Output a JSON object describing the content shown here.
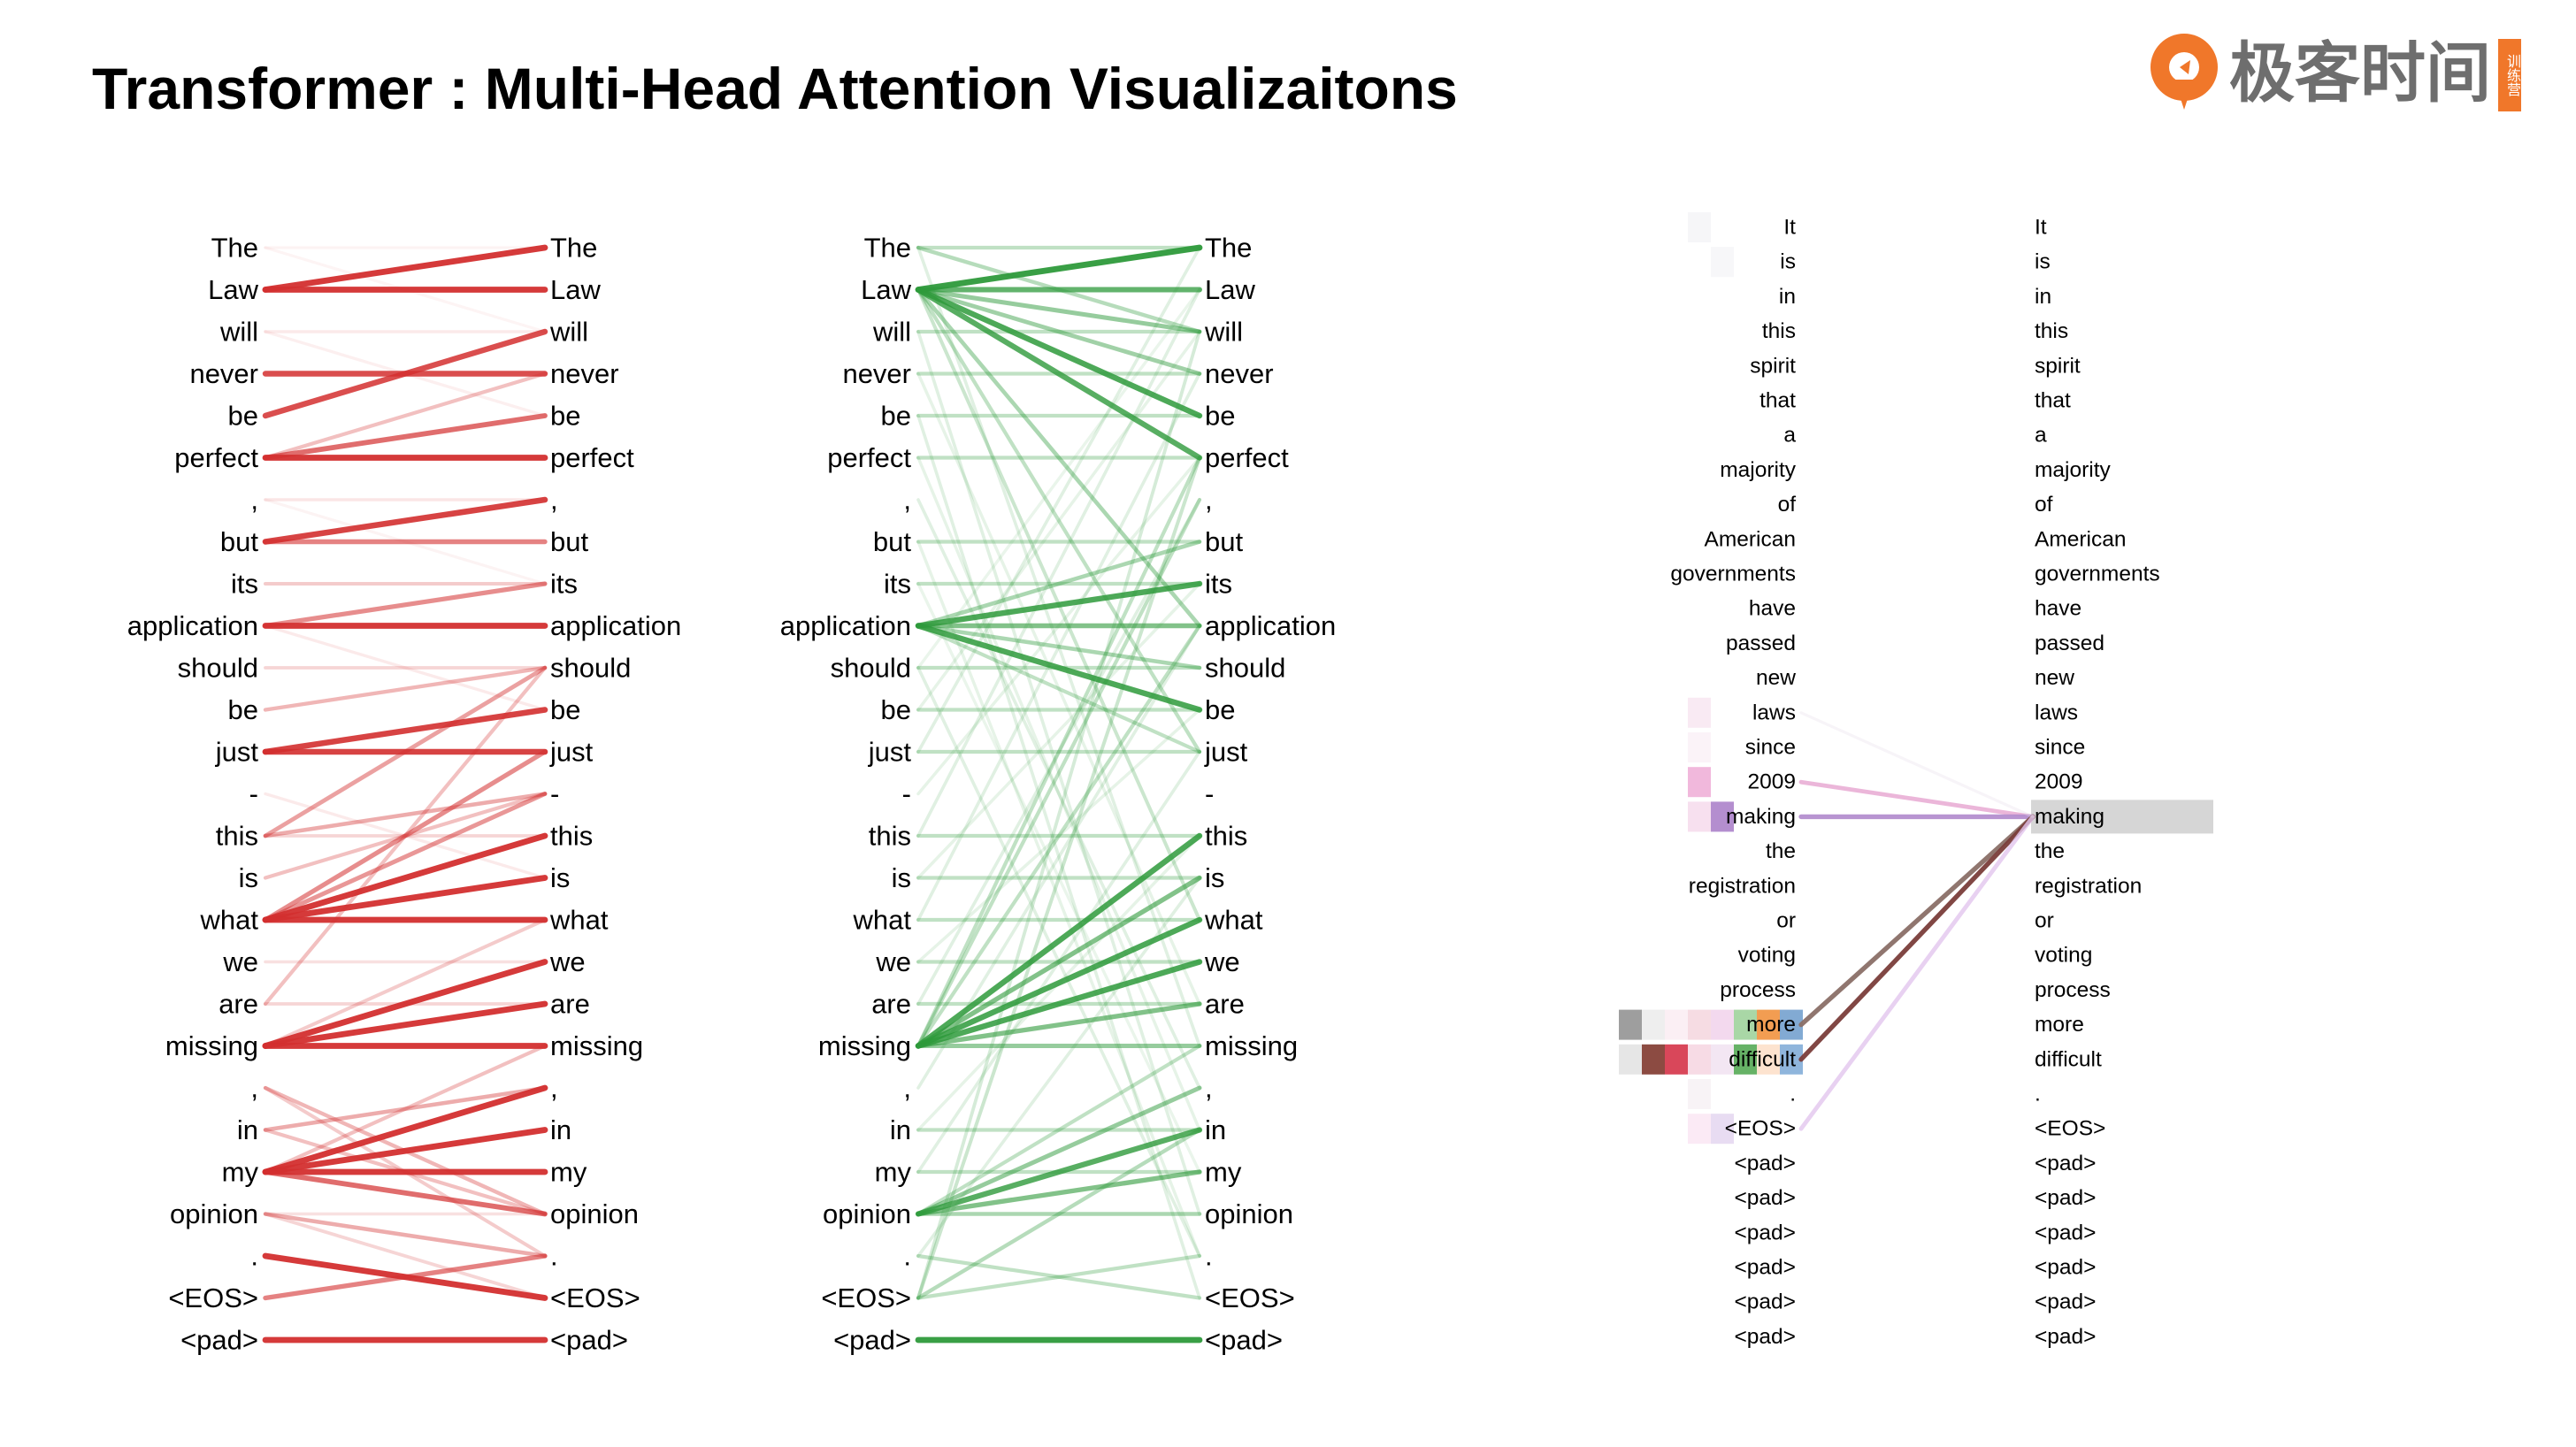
{
  "title": "Transformer : Multi-Head Attention Visualizaitons",
  "brand": {
    "name": "极客时间",
    "tag": "训练营",
    "color": "#f0772a"
  },
  "panels": [
    {
      "name": "red-head",
      "color": "#d32f2f",
      "tokens": [
        "The",
        "Law",
        "will",
        "never",
        "be",
        "perfect",
        ",",
        "but",
        "its",
        "application",
        "should",
        "be",
        "just",
        "-",
        "this",
        "is",
        "what",
        "we",
        "are",
        "missing",
        ",",
        "in",
        "my",
        "opinion",
        ".",
        "<EOS>",
        "<pad>"
      ],
      "links": [
        [
          1,
          0,
          0.95
        ],
        [
          1,
          1,
          0.95
        ],
        [
          3,
          3,
          0.85
        ],
        [
          4,
          2,
          0.85
        ],
        [
          5,
          5,
          0.95
        ],
        [
          5,
          4,
          0.7
        ],
        [
          5,
          3,
          0.3
        ],
        [
          7,
          6,
          0.9
        ],
        [
          7,
          7,
          0.6
        ],
        [
          9,
          9,
          0.95
        ],
        [
          9,
          8,
          0.55
        ],
        [
          12,
          11,
          0.9
        ],
        [
          12,
          12,
          0.9
        ],
        [
          11,
          10,
          0.35
        ],
        [
          10,
          10,
          0.2
        ],
        [
          14,
          10,
          0.45
        ],
        [
          14,
          13,
          0.4
        ],
        [
          16,
          14,
          0.95
        ],
        [
          16,
          15,
          0.95
        ],
        [
          16,
          16,
          0.95
        ],
        [
          16,
          12,
          0.55
        ],
        [
          16,
          13,
          0.5
        ],
        [
          15,
          13,
          0.3
        ],
        [
          18,
          10,
          0.3
        ],
        [
          19,
          17,
          0.95
        ],
        [
          19,
          18,
          0.95
        ],
        [
          19,
          19,
          0.95
        ],
        [
          19,
          16,
          0.25
        ],
        [
          20,
          23,
          0.35
        ],
        [
          20,
          24,
          0.25
        ],
        [
          21,
          20,
          0.4
        ],
        [
          21,
          23,
          0.3
        ],
        [
          22,
          20,
          0.95
        ],
        [
          22,
          21,
          0.95
        ],
        [
          22,
          22,
          0.95
        ],
        [
          22,
          23,
          0.7
        ],
        [
          22,
          19,
          0.3
        ],
        [
          23,
          24,
          0.4
        ],
        [
          23,
          25,
          0.2
        ],
        [
          24,
          25,
          0.95
        ],
        [
          25,
          24,
          0.6
        ],
        [
          26,
          26,
          0.95
        ],
        [
          0,
          2,
          0.05
        ],
        [
          2,
          4,
          0.08
        ],
        [
          6,
          8,
          0.06
        ],
        [
          8,
          8,
          0.25
        ],
        [
          13,
          15,
          0.1
        ],
        [
          17,
          17,
          0.15
        ],
        [
          0,
          0,
          0.06
        ],
        [
          2,
          2,
          0.1
        ],
        [
          6,
          6,
          0.12
        ],
        [
          9,
          11,
          0.1
        ],
        [
          14,
          14,
          0.2
        ],
        [
          18,
          18,
          0.2
        ],
        [
          23,
          23,
          0.15
        ]
      ]
    },
    {
      "name": "green-head",
      "color": "#2e9a3b",
      "tokens": [
        "The",
        "Law",
        "will",
        "never",
        "be",
        "perfect",
        ",",
        "but",
        "its",
        "application",
        "should",
        "be",
        "just",
        "-",
        "this",
        "is",
        "what",
        "we",
        "are",
        "missing",
        ",",
        "in",
        "my",
        "opinion",
        ".",
        "<EOS>",
        "<pad>"
      ],
      "links": [
        [
          1,
          0,
          0.95
        ],
        [
          1,
          1,
          0.75
        ],
        [
          1,
          2,
          0.5
        ],
        [
          1,
          3,
          0.45
        ],
        [
          1,
          4,
          0.85
        ],
        [
          1,
          5,
          0.8
        ],
        [
          1,
          9,
          0.4
        ],
        [
          1,
          12,
          0.3
        ],
        [
          1,
          16,
          0.25
        ],
        [
          9,
          8,
          0.85
        ],
        [
          9,
          11,
          0.85
        ],
        [
          9,
          9,
          0.6
        ],
        [
          9,
          7,
          0.4
        ],
        [
          9,
          10,
          0.4
        ],
        [
          9,
          12,
          0.3
        ],
        [
          19,
          14,
          0.85
        ],
        [
          19,
          15,
          0.6
        ],
        [
          19,
          16,
          0.85
        ],
        [
          19,
          17,
          0.85
        ],
        [
          19,
          18,
          0.6
        ],
        [
          19,
          19,
          0.5
        ],
        [
          19,
          9,
          0.3
        ],
        [
          19,
          6,
          0.3
        ],
        [
          19,
          5,
          0.3
        ],
        [
          23,
          21,
          0.8
        ],
        [
          23,
          22,
          0.6
        ],
        [
          23,
          20,
          0.5
        ],
        [
          23,
          23,
          0.4
        ],
        [
          23,
          19,
          0.3
        ],
        [
          25,
          21,
          0.35
        ],
        [
          25,
          5,
          0.25
        ],
        [
          25,
          2,
          0.2
        ],
        [
          26,
          26,
          0.95
        ],
        [
          0,
          2,
          0.35
        ],
        [
          0,
          0,
          0.3
        ],
        [
          2,
          2,
          0.3
        ],
        [
          3,
          3,
          0.3
        ],
        [
          4,
          4,
          0.3
        ],
        [
          5,
          5,
          0.3
        ],
        [
          7,
          7,
          0.3
        ],
        [
          8,
          8,
          0.3
        ],
        [
          10,
          10,
          0.3
        ],
        [
          11,
          11,
          0.3
        ],
        [
          12,
          12,
          0.3
        ],
        [
          14,
          14,
          0.3
        ],
        [
          15,
          15,
          0.3
        ],
        [
          16,
          16,
          0.3
        ],
        [
          17,
          17,
          0.3
        ],
        [
          18,
          18,
          0.3
        ],
        [
          21,
          21,
          0.3
        ],
        [
          22,
          22,
          0.3
        ],
        [
          24,
          25,
          0.3
        ],
        [
          25,
          24,
          0.3
        ],
        [
          0,
          19,
          0.15
        ],
        [
          2,
          23,
          0.15
        ],
        [
          4,
          25,
          0.15
        ],
        [
          6,
          20,
          0.15
        ],
        [
          10,
          24,
          0.15
        ],
        [
          12,
          0,
          0.15
        ],
        [
          14,
          1,
          0.15
        ],
        [
          16,
          3,
          0.15
        ],
        [
          18,
          6,
          0.15
        ],
        [
          20,
          9,
          0.15
        ],
        [
          22,
          12,
          0.15
        ],
        [
          24,
          15,
          0.15
        ],
        [
          3,
          18,
          0.12
        ],
        [
          5,
          21,
          0.12
        ],
        [
          7,
          24,
          0.12
        ],
        [
          11,
          2,
          0.12
        ],
        [
          13,
          5,
          0.12
        ],
        [
          15,
          8,
          0.12
        ],
        [
          17,
          11,
          0.12
        ],
        [
          21,
          14,
          0.12
        ],
        [
          8,
          22,
          0.1
        ],
        [
          10,
          1,
          0.1
        ]
      ]
    },
    {
      "name": "multi-head",
      "tokens": [
        "It",
        "is",
        "in",
        "this",
        "spirit",
        "that",
        "a",
        "majority",
        "of",
        "American",
        "governments",
        "have",
        "passed",
        "new",
        "laws",
        "since",
        "2009",
        "making",
        "the",
        "registration",
        "or",
        "voting",
        "process",
        "more",
        "difficult",
        ".",
        "<EOS>",
        "<pad>",
        "<pad>",
        "<pad>",
        "<pad>",
        "<pad>",
        "<pad>"
      ],
      "highlight_index": 17,
      "highlight_color": "#d6d6d6",
      "head_colors": [
        "#9e9e9e",
        "#8c4b42",
        "#d9475a",
        "#e6a4d0",
        "#b48ecf",
        "#66b266",
        "#f29d52",
        "#82aad3"
      ],
      "links": [
        {
          "from": 16,
          "color": "#e6a4d0",
          "w": 0.8
        },
        {
          "from": 17,
          "color": "#b48ecf",
          "w": 0.95
        },
        {
          "from": 23,
          "color": "#8a6f67",
          "w": 0.95
        },
        {
          "from": 24,
          "color": "#7a3d3a",
          "w": 0.95
        },
        {
          "from": 26,
          "color": "#e2c6ee",
          "w": 0.8
        },
        {
          "from": 14,
          "color": "#e9e0ec",
          "w": 0.35
        }
      ],
      "cells": [
        {
          "row": 23,
          "col": 0,
          "color": "#9e9e9e",
          "a": 1
        },
        {
          "row": 23,
          "col": 1,
          "color": "#eeeeee",
          "a": 1
        },
        {
          "row": 23,
          "col": 2,
          "color": "#fbeff4",
          "a": 1
        },
        {
          "row": 23,
          "col": 3,
          "color": "#f6dce3",
          "a": 1
        },
        {
          "row": 23,
          "col": 4,
          "color": "#f3d9ee",
          "a": 1
        },
        {
          "row": 23,
          "col": 5,
          "color": "#a9d7a6",
          "a": 1
        },
        {
          "row": 23,
          "col": 6,
          "color": "#f29d52",
          "a": 1
        },
        {
          "row": 23,
          "col": 7,
          "color": "#82aad3",
          "a": 1
        },
        {
          "row": 24,
          "col": 0,
          "color": "#e6e6e6",
          "a": 1
        },
        {
          "row": 24,
          "col": 1,
          "color": "#8c4b42",
          "a": 1
        },
        {
          "row": 24,
          "col": 2,
          "color": "#d9475a",
          "a": 1
        },
        {
          "row": 24,
          "col": 3,
          "color": "#f7dbe5",
          "a": 1
        },
        {
          "row": 24,
          "col": 4,
          "color": "#f3e6f3",
          "a": 1
        },
        {
          "row": 24,
          "col": 5,
          "color": "#66b266",
          "a": 1
        },
        {
          "row": 24,
          "col": 6,
          "color": "#fde3cf",
          "a": 1
        },
        {
          "row": 24,
          "col": 7,
          "color": "#8fb5dc",
          "a": 1
        },
        {
          "row": 16,
          "col": 3,
          "color": "#f1b8dc",
          "a": 1
        },
        {
          "row": 17,
          "col": 3,
          "color": "#f7e0ef",
          "a": 1
        },
        {
          "row": 17,
          "col": 4,
          "color": "#b48ecf",
          "a": 1
        },
        {
          "row": 14,
          "col": 3,
          "color": "#f9eaf3",
          "a": 1
        },
        {
          "row": 26,
          "col": 3,
          "color": "#fbeaf5",
          "a": 1
        },
        {
          "row": 26,
          "col": 4,
          "color": "#e8dcf2",
          "a": 1
        },
        {
          "row": 0,
          "col": 3,
          "color": "#f6f6f8",
          "a": 1
        },
        {
          "row": 1,
          "col": 4,
          "color": "#f7f7f9",
          "a": 1
        },
        {
          "row": 25,
          "col": 3,
          "color": "#f8f3f6",
          "a": 1
        },
        {
          "row": 15,
          "col": 3,
          "color": "#fbf3f8",
          "a": 1
        }
      ]
    }
  ]
}
